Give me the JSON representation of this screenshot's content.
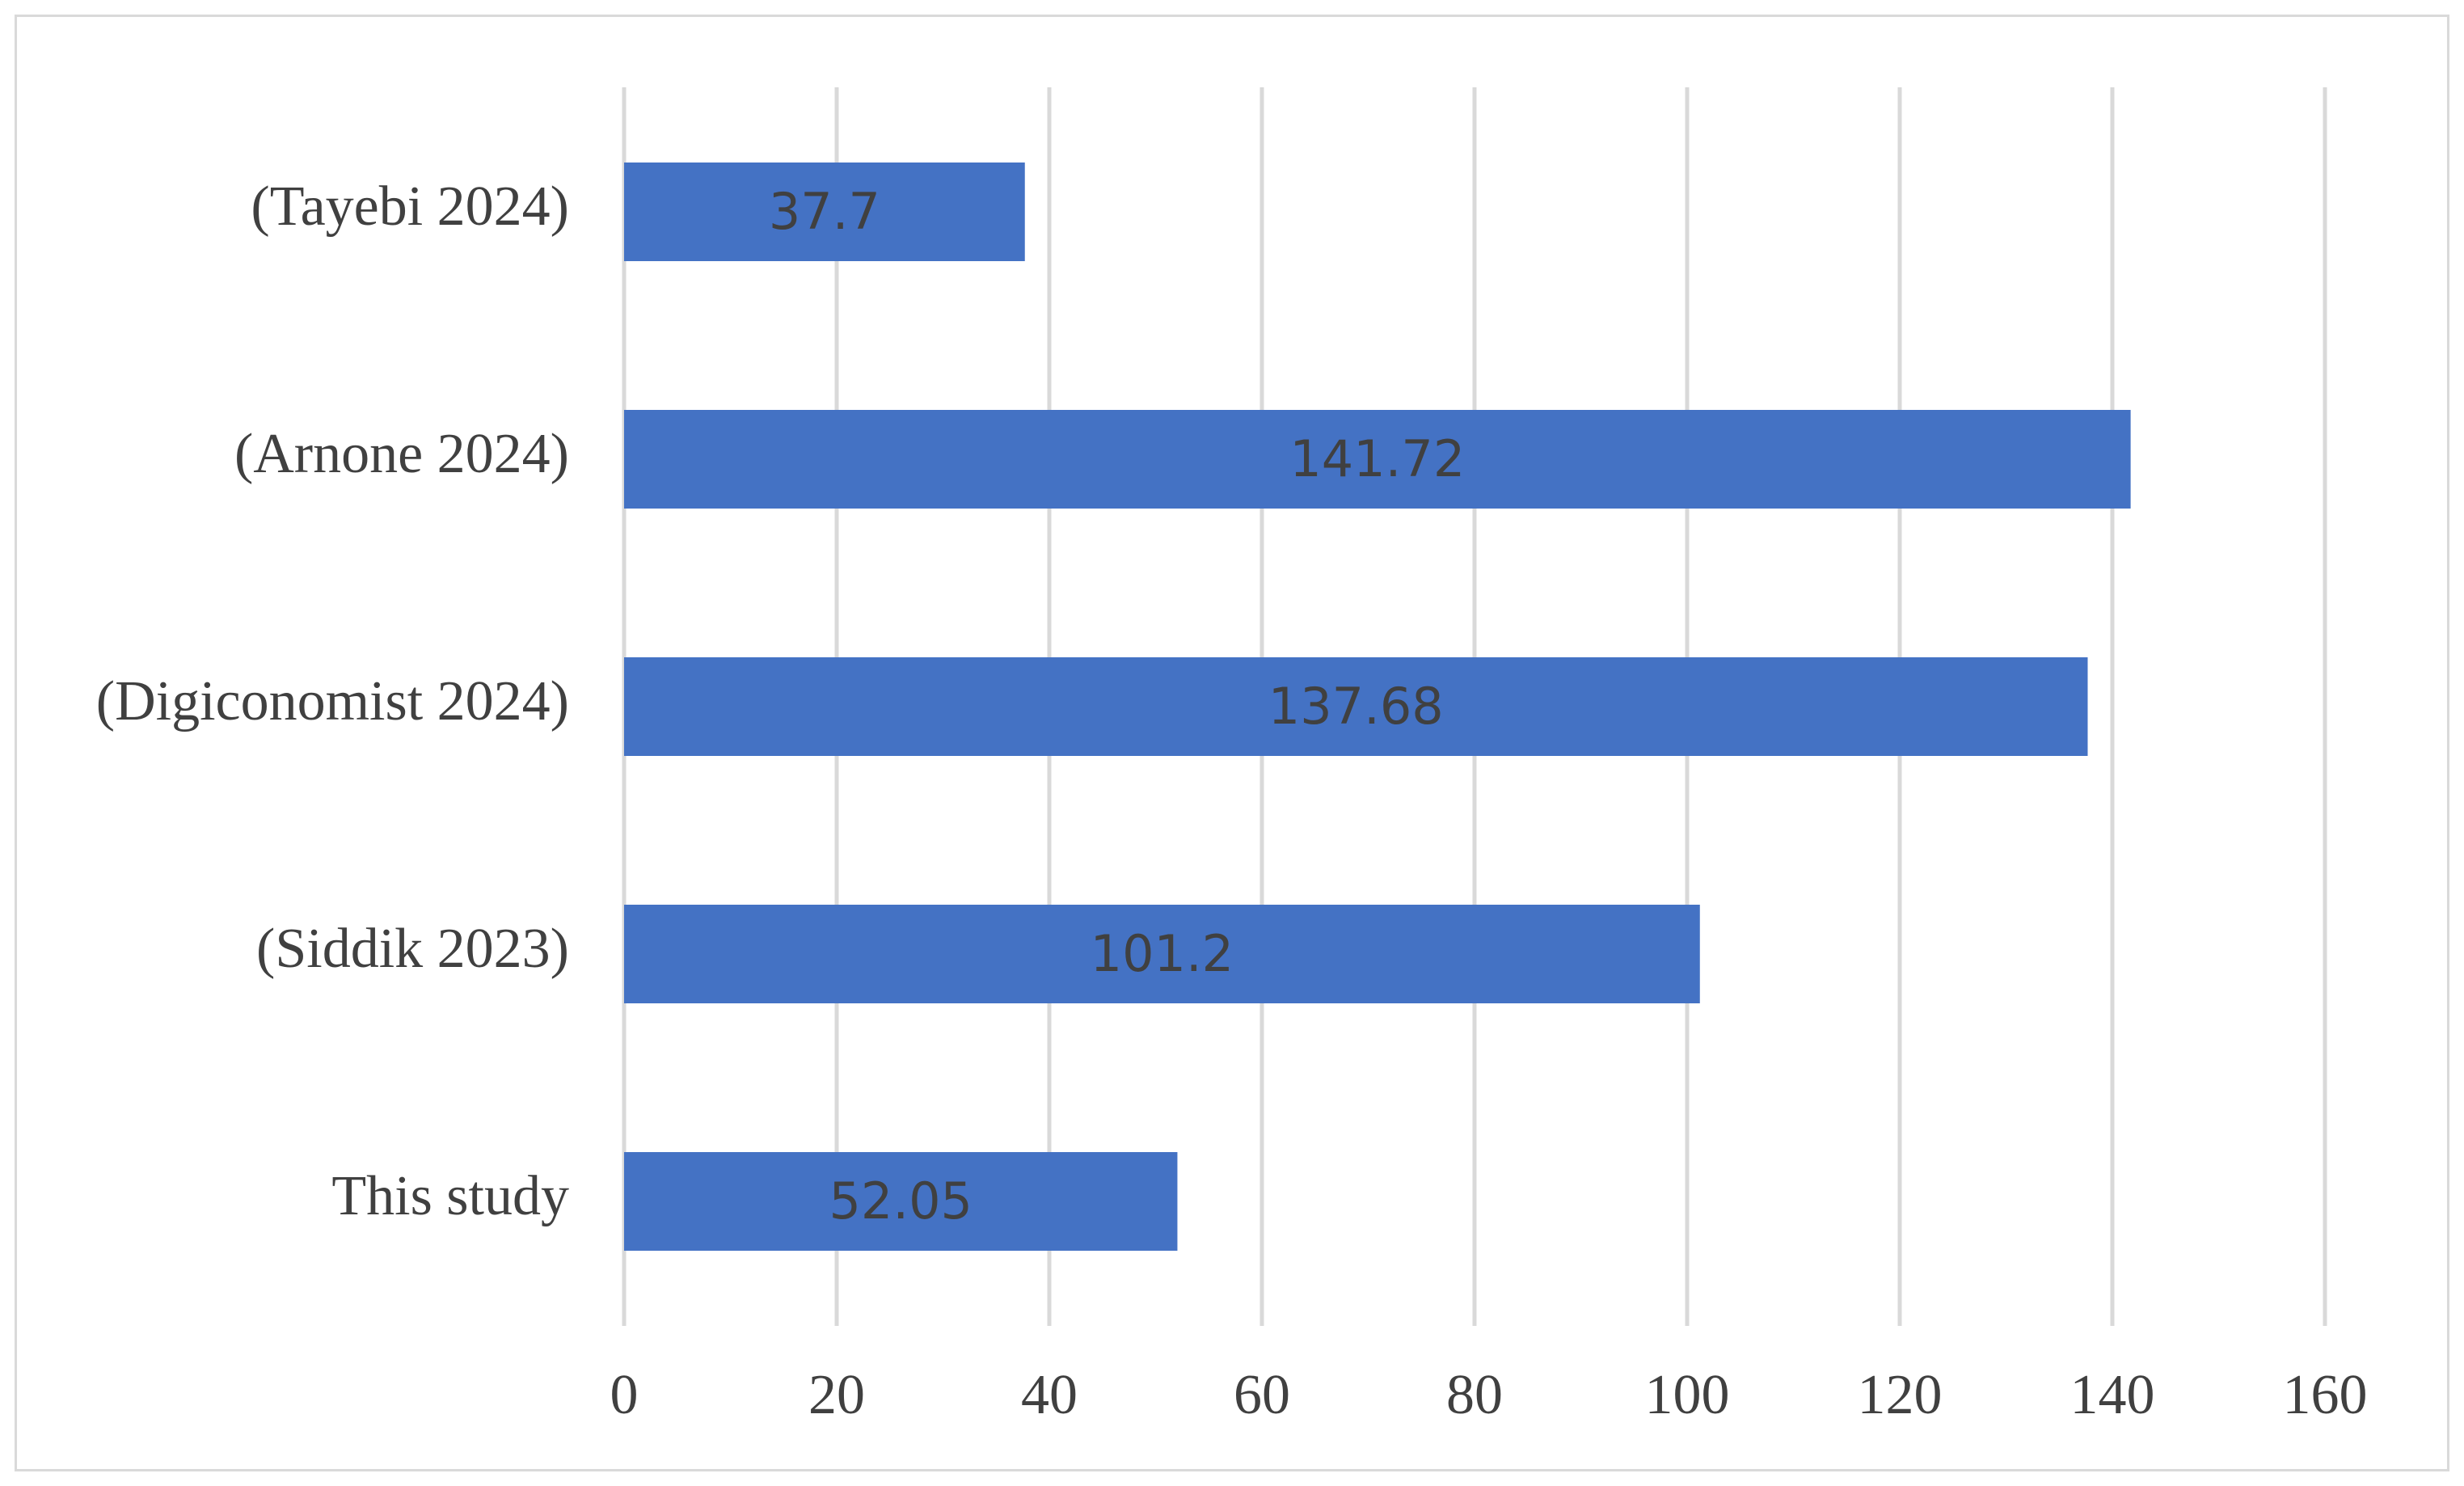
{
  "chart_data": {
    "type": "bar",
    "orientation": "horizontal",
    "title": "",
    "xlabel": "",
    "ylabel": "",
    "categories": [
      "(Tayebi 2024)",
      "(Arnone 2024)",
      "(Digiconomist 2024)",
      "(Siddik 2023)",
      "This study"
    ],
    "values": [
      37.7,
      141.72,
      137.68,
      101.2,
      52.05
    ],
    "data_labels": [
      "37.7",
      "141.72",
      "137.68",
      "101.2",
      "52.05"
    ],
    "xlim": [
      0,
      160
    ],
    "x_ticks": [
      0,
      20,
      40,
      60,
      80,
      100,
      120,
      140,
      160
    ],
    "x_tick_labels": [
      "0",
      "20",
      "40",
      "60",
      "80",
      "100",
      "120",
      "140",
      "160"
    ],
    "grid": "vertical",
    "legend": "none",
    "bar_color": "#4472c4",
    "gridline_color": "#d9d9d9",
    "text_color": "#404040"
  }
}
